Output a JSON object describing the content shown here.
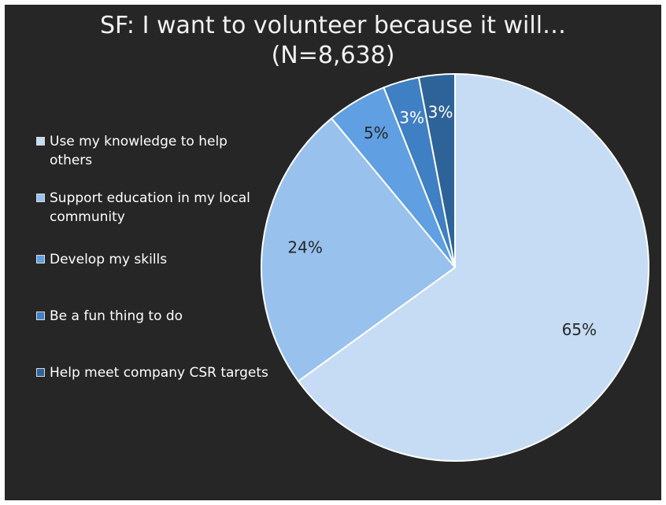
{
  "chart_data": {
    "type": "pie",
    "title": "SF: I want to volunteer because it will…\n(N=8,638)",
    "slices": [
      {
        "label": "Use my knowledge to help others",
        "value": 65,
        "display": "65%",
        "color": "#c6dcf5",
        "label_color": "#262626"
      },
      {
        "label": "Support education in my local community",
        "value": 24,
        "display": "24%",
        "color": "#98c1ee",
        "label_color": "#262626"
      },
      {
        "label": "Develop my skills",
        "value": 5,
        "display": "5%",
        "color": "#5f9fe2",
        "label_color": "#262626"
      },
      {
        "label": "Be a fun thing to do",
        "value": 3,
        "display": "3%",
        "color": "#3f7fc4",
        "label_color": "#ffffff"
      },
      {
        "label": "Help meet company CSR targets",
        "value": 3,
        "display": "3%",
        "color": "#2e6399",
        "label_color": "#ffffff"
      }
    ],
    "legend_position": "left",
    "slice_border_color": "#ffffff",
    "background_color": "#262626"
  }
}
